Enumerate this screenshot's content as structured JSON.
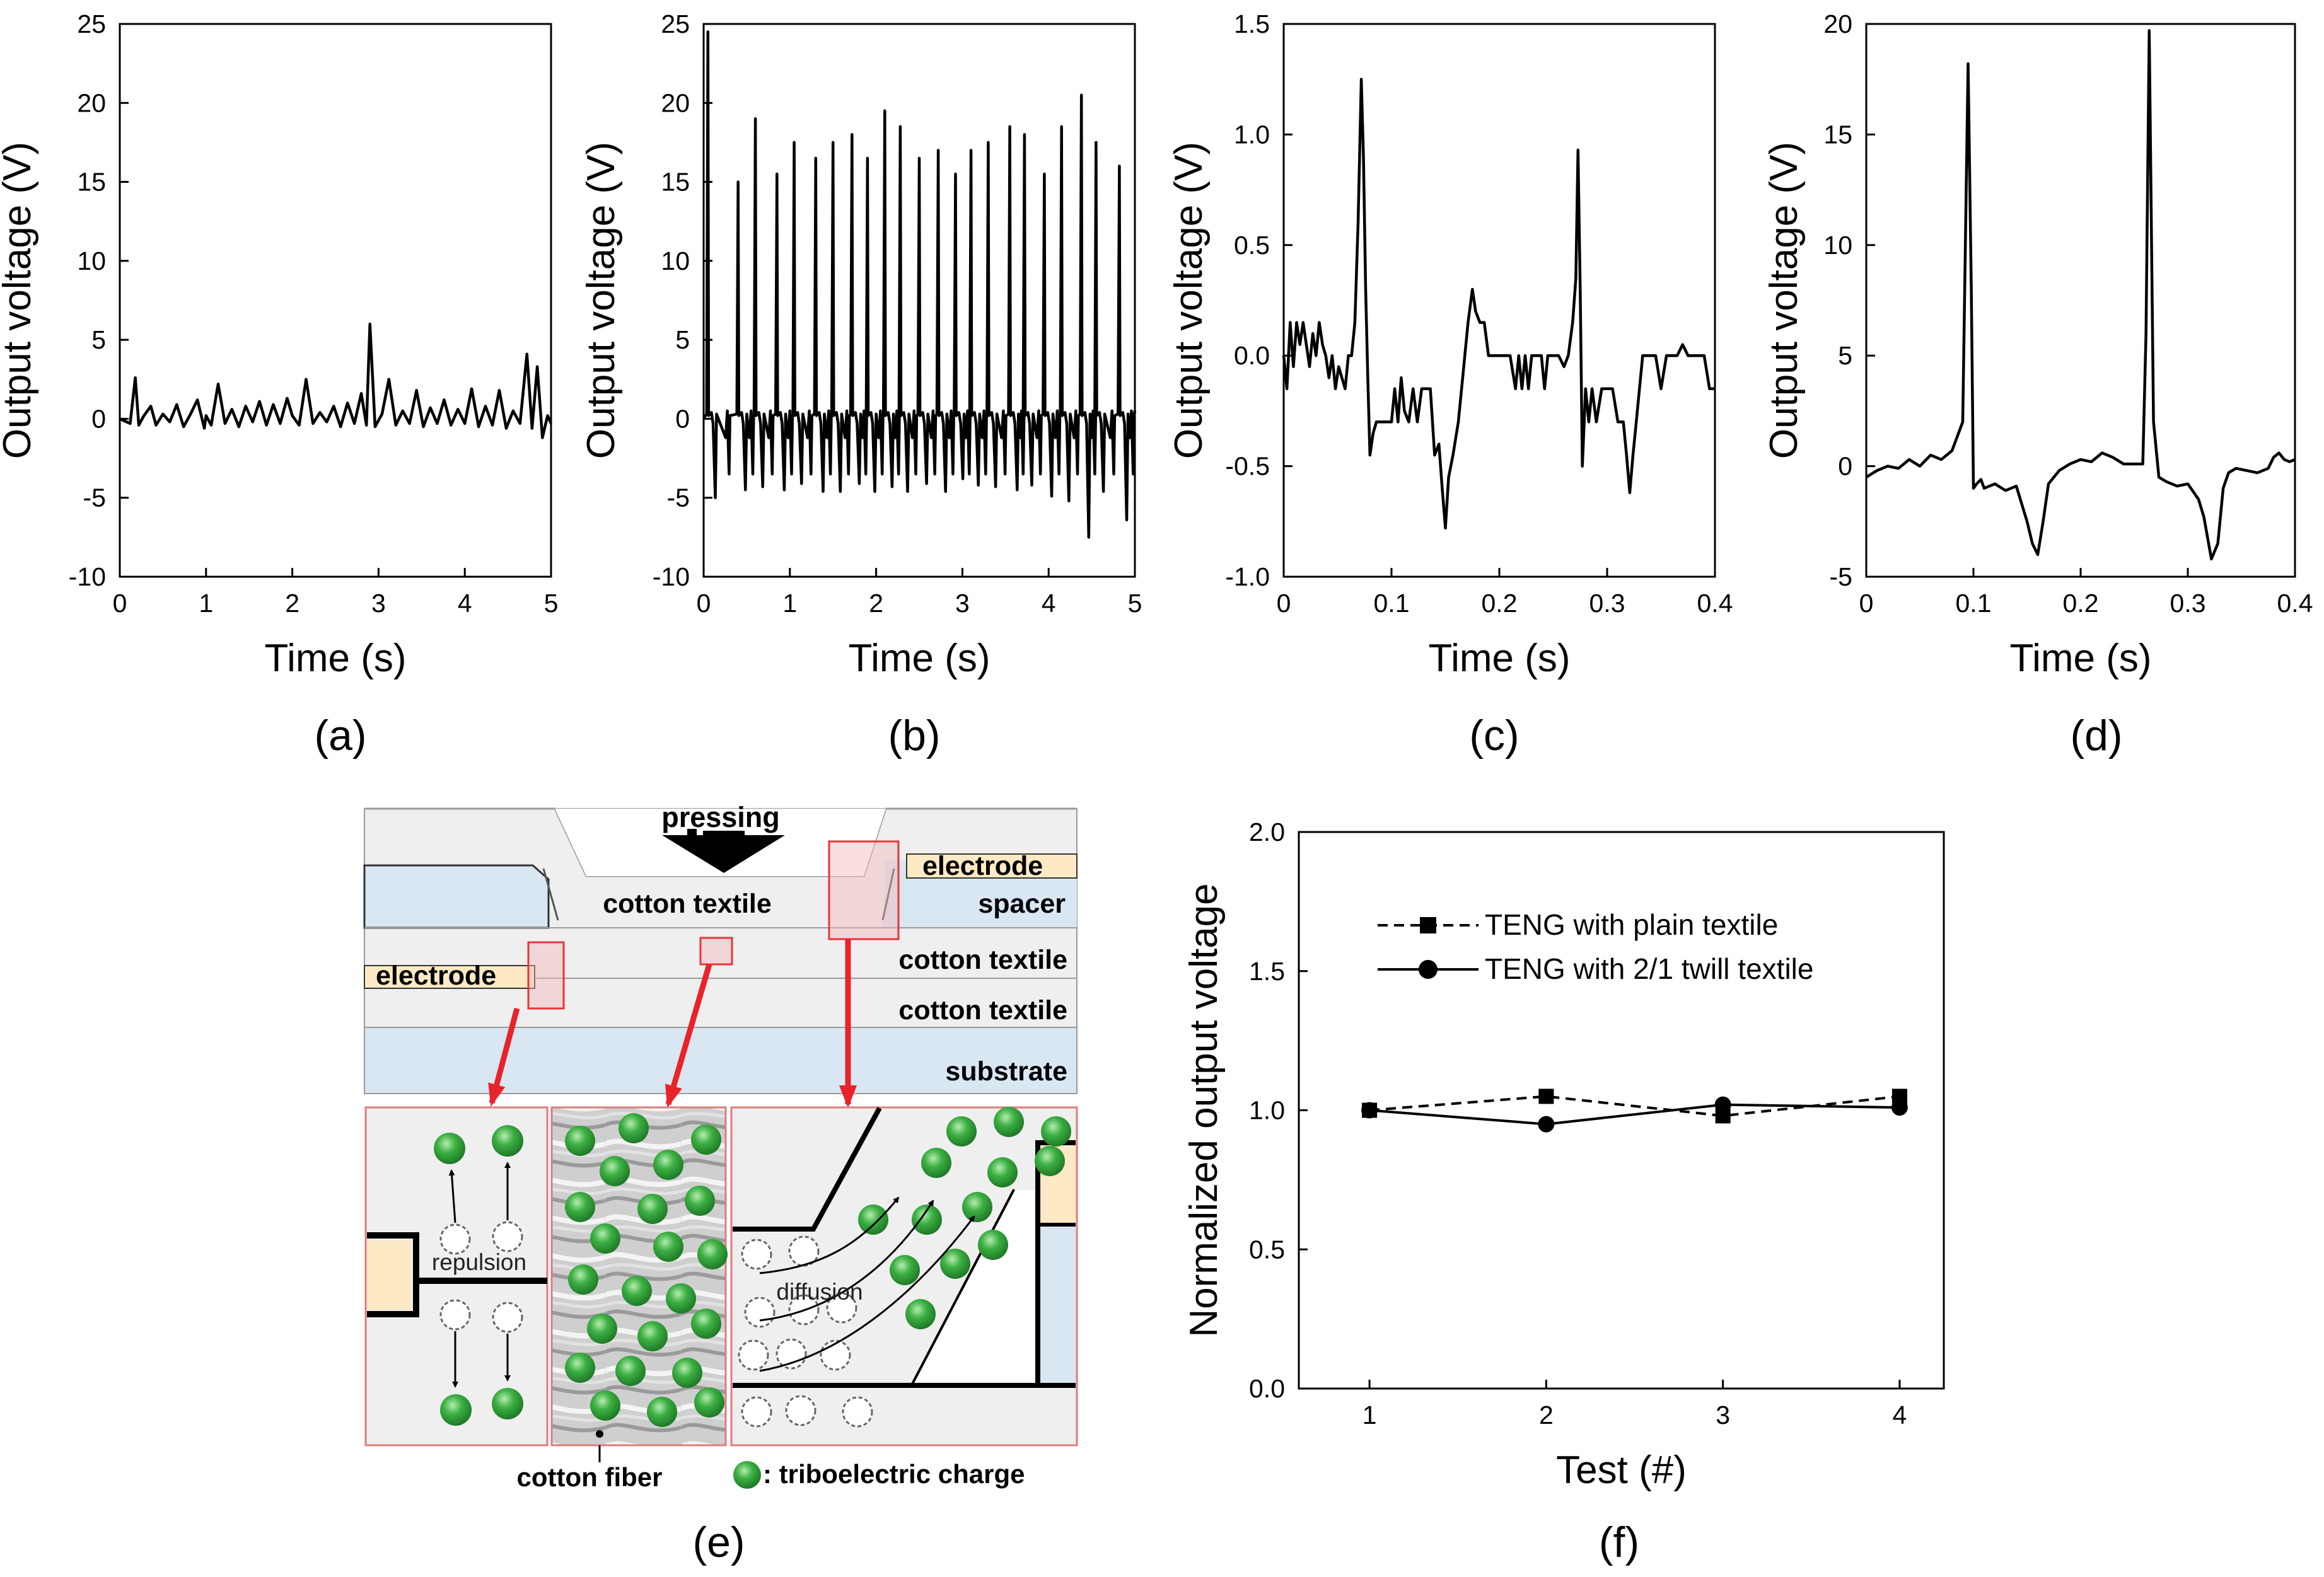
{
  "panel_labels": [
    "(a)",
    "(b)",
    "(c)",
    "(d)",
    "(e)",
    "(f)"
  ],
  "chart_data": [
    {
      "id": "a",
      "type": "line",
      "xlabel": "Time (s)",
      "ylabel": "Output voltage (V)",
      "xlim": [
        0,
        5
      ],
      "ylim": [
        -10,
        25
      ],
      "xticks": [
        0,
        1,
        2,
        3,
        4,
        5
      ],
      "yticks": [
        -10,
        -5,
        0,
        5,
        10,
        15,
        20,
        25
      ],
      "x": [
        0,
        0.12,
        0.18,
        0.22,
        0.28,
        0.36,
        0.42,
        0.5,
        0.58,
        0.66,
        0.74,
        0.82,
        0.9,
        0.98,
        1.0,
        1.06,
        1.14,
        1.22,
        1.3,
        1.38,
        1.46,
        1.54,
        1.62,
        1.7,
        1.78,
        1.86,
        1.94,
        2.0,
        2.08,
        2.16,
        2.24,
        2.32,
        2.4,
        2.48,
        2.56,
        2.64,
        2.72,
        2.8,
        2.86,
        2.9,
        2.96,
        3.04,
        3.12,
        3.2,
        3.28,
        3.36,
        3.44,
        3.52,
        3.6,
        3.68,
        3.76,
        3.84,
        3.92,
        4.0,
        4.08,
        4.16,
        4.24,
        4.32,
        4.4,
        4.48,
        4.56,
        4.64,
        4.72,
        4.78,
        4.84,
        4.9,
        4.96,
        5.0
      ],
      "y": [
        0,
        -0.3,
        2.6,
        -0.4,
        0.2,
        0.8,
        -0.4,
        0.3,
        -0.2,
        0.9,
        -0.5,
        0.3,
        1.2,
        -0.6,
        0.2,
        -0.4,
        2.2,
        -0.3,
        0.6,
        -0.5,
        0.8,
        -0.2,
        1.1,
        -0.4,
        0.9,
        -0.3,
        1.3,
        0.2,
        -0.4,
        2.5,
        -0.3,
        0.4,
        -0.2,
        0.8,
        -0.5,
        1.0,
        -0.3,
        1.6,
        -0.4,
        6.0,
        -0.5,
        0.3,
        2.5,
        -0.4,
        0.5,
        -0.3,
        1.8,
        -0.5,
        0.7,
        -0.3,
        1.2,
        -0.4,
        0.6,
        -0.3,
        1.9,
        -0.5,
        0.8,
        -0.4,
        1.8,
        -0.6,
        0.5,
        -0.3,
        4.1,
        -0.6,
        3.3,
        -1.2,
        0.2,
        -0.3
      ]
    },
    {
      "id": "b",
      "type": "line",
      "xlabel": "Time (s)",
      "ylabel": "Output voltage (V)",
      "xlim": [
        0,
        5
      ],
      "ylim": [
        -10,
        25
      ],
      "xticks": [
        0,
        1,
        2,
        3,
        4,
        5
      ],
      "yticks": [
        -10,
        -5,
        0,
        5,
        10,
        15,
        20,
        25
      ],
      "peaks_x": [
        0.05,
        0.4,
        0.6,
        0.85,
        1.05,
        1.3,
        1.5,
        1.72,
        1.9,
        2.1,
        2.28,
        2.5,
        2.72,
        2.92,
        3.1,
        3.3,
        3.55,
        3.72,
        3.95,
        4.15,
        4.38,
        4.55,
        4.82
      ],
      "peaks_y": [
        24.5,
        15,
        19,
        15.5,
        17.5,
        16.5,
        17.5,
        18,
        16.5,
        19.5,
        18.5,
        16.5,
        17,
        15.5,
        17,
        17.5,
        18.5,
        18,
        15.5,
        18.5,
        20.5,
        17.5,
        16
      ],
      "troughs_y": [
        -5,
        -4.5,
        -4.3,
        -4.5,
        -4.1,
        -4.6,
        -4.6,
        -4.1,
        -4.6,
        -4.3,
        -4.6,
        -4.1,
        -4.6,
        -3.8,
        -4.2,
        -4.3,
        -4.5,
        -4.2,
        -4.9,
        -5.2,
        -7.5,
        -4.6,
        -6.4
      ]
    },
    {
      "id": "c",
      "type": "line",
      "xlabel": "Time (s)",
      "ylabel": "Output voltage (V)",
      "xlim": [
        0,
        0.4
      ],
      "ylim": [
        -1.0,
        1.5
      ],
      "xticks": [
        0,
        0.1,
        0.2,
        0.3,
        0.4
      ],
      "xticklabels": [
        "0",
        "0.1",
        "0.2",
        "0.3",
        "0.4"
      ],
      "yticks": [
        -1.0,
        -0.5,
        0.0,
        0.5,
        1.0,
        1.5
      ],
      "yticklabels": [
        "-1.0",
        "-0.5",
        "0.0",
        "0.5",
        "1.0",
        "1.5"
      ],
      "x": [
        0,
        0.003,
        0.006,
        0.009,
        0.012,
        0.015,
        0.018,
        0.021,
        0.024,
        0.027,
        0.03,
        0.033,
        0.036,
        0.039,
        0.042,
        0.045,
        0.048,
        0.051,
        0.054,
        0.057,
        0.06,
        0.063,
        0.066,
        0.069,
        0.072,
        0.074,
        0.076,
        0.078,
        0.08,
        0.083,
        0.086,
        0.09,
        0.095,
        0.1,
        0.103,
        0.106,
        0.109,
        0.112,
        0.116,
        0.12,
        0.124,
        0.128,
        0.132,
        0.136,
        0.14,
        0.144,
        0.147,
        0.15,
        0.153,
        0.157,
        0.162,
        0.167,
        0.171,
        0.175,
        0.178,
        0.182,
        0.186,
        0.19,
        0.195,
        0.2,
        0.205,
        0.21,
        0.215,
        0.218,
        0.221,
        0.224,
        0.227,
        0.23,
        0.233,
        0.236,
        0.239,
        0.242,
        0.245,
        0.25,
        0.255,
        0.26,
        0.264,
        0.268,
        0.271,
        0.273,
        0.275,
        0.277,
        0.28,
        0.283,
        0.286,
        0.29,
        0.295,
        0.3,
        0.305,
        0.31,
        0.315,
        0.318,
        0.321,
        0.324,
        0.327,
        0.33,
        0.333,
        0.336,
        0.34,
        0.345,
        0.35,
        0.355,
        0.36,
        0.365,
        0.37,
        0.375,
        0.38,
        0.385,
        0.39,
        0.395,
        0.4
      ],
      "y": [
        0,
        -0.15,
        0.15,
        -0.05,
        0.15,
        0.05,
        0.15,
        0.05,
        -0.05,
        0.1,
        0.0,
        0.15,
        0.05,
        0.0,
        -0.1,
        0.0,
        -0.15,
        -0.05,
        -0.1,
        -0.15,
        0.0,
        0.0,
        0.15,
        0.6,
        1.25,
        0.9,
        0.3,
        -0.1,
        -0.45,
        -0.35,
        -0.3,
        -0.3,
        -0.3,
        -0.3,
        -0.15,
        -0.3,
        -0.1,
        -0.25,
        -0.3,
        -0.15,
        -0.3,
        -0.15,
        -0.15,
        -0.15,
        -0.45,
        -0.4,
        -0.6,
        -0.78,
        -0.55,
        -0.45,
        -0.3,
        -0.05,
        0.15,
        0.3,
        0.2,
        0.15,
        0.15,
        0.0,
        0.0,
        0.0,
        0.0,
        0.0,
        -0.15,
        0.0,
        -0.15,
        0.0,
        -0.15,
        0.0,
        0.0,
        0.0,
        0.0,
        -0.15,
        0.0,
        0.0,
        0.0,
        -0.05,
        0.0,
        0.15,
        0.35,
        0.93,
        0.3,
        -0.5,
        -0.15,
        -0.3,
        -0.15,
        -0.3,
        -0.15,
        -0.15,
        -0.15,
        -0.3,
        -0.3,
        -0.45,
        -0.62,
        -0.45,
        -0.3,
        -0.15,
        0.0,
        0.0,
        0.0,
        0.0,
        -0.15,
        0.0,
        0.0,
        0.0,
        0.05,
        0.0,
        0.0,
        0.0,
        0.0,
        -0.15,
        -0.15
      ]
    },
    {
      "id": "d",
      "type": "line",
      "xlabel": "Time (s)",
      "ylabel": "Output voltage (V)",
      "xlim": [
        0,
        0.4
      ],
      "ylim": [
        -5,
        20
      ],
      "xticks": [
        0,
        0.1,
        0.2,
        0.3,
        0.4
      ],
      "xticklabels": [
        "0",
        "0.1",
        "0.2",
        "0.3",
        "0.4"
      ],
      "yticks": [
        -5,
        0,
        5,
        10,
        15,
        20
      ],
      "yticklabels": [
        "-5",
        "0",
        "5",
        "10",
        "15",
        "20"
      ],
      "x": [
        0,
        0.01,
        0.02,
        0.03,
        0.04,
        0.05,
        0.06,
        0.07,
        0.08,
        0.09,
        0.095,
        0.098,
        0.1,
        0.103,
        0.107,
        0.11,
        0.12,
        0.13,
        0.14,
        0.15,
        0.155,
        0.16,
        0.165,
        0.17,
        0.18,
        0.19,
        0.2,
        0.21,
        0.22,
        0.23,
        0.24,
        0.25,
        0.258,
        0.261,
        0.264,
        0.268,
        0.273,
        0.28,
        0.29,
        0.3,
        0.31,
        0.315,
        0.322,
        0.328,
        0.333,
        0.338,
        0.345,
        0.355,
        0.365,
        0.375,
        0.38,
        0.385,
        0.39,
        0.395,
        0.4
      ],
      "y": [
        -0.5,
        -0.2,
        0,
        -0.1,
        0.3,
        0,
        0.5,
        0.3,
        0.7,
        2.0,
        18.2,
        8.0,
        -1.0,
        -0.8,
        -0.6,
        -1.0,
        -0.8,
        -1.1,
        -0.9,
        -2.5,
        -3.5,
        -4.0,
        -2.5,
        -0.8,
        -0.2,
        0.1,
        0.3,
        0.2,
        0.6,
        0.4,
        0.1,
        0.1,
        0.1,
        6.0,
        19.7,
        2.0,
        -0.5,
        -0.7,
        -0.9,
        -0.8,
        -1.5,
        -2.3,
        -4.2,
        -3.5,
        -1.0,
        -0.3,
        -0.1,
        -0.2,
        -0.3,
        -0.1,
        0.4,
        0.6,
        0.3,
        0.2,
        0.3
      ]
    },
    {
      "id": "f",
      "type": "line",
      "xlabel": "Test (#)",
      "ylabel": "Normalized output voltage",
      "xlim": [
        0.6,
        4.25
      ],
      "ylim": [
        0.0,
        2.0
      ],
      "categories": [
        1,
        2,
        3,
        4
      ],
      "yticks": [
        0.0,
        0.5,
        1.0,
        1.5,
        2.0
      ],
      "yticklabels": [
        "0.0",
        "0.5",
        "1.0",
        "1.5",
        "2.0"
      ],
      "series": [
        {
          "name": "TENG with plain textile",
          "marker": "square",
          "line": "dashed",
          "values": [
            1.0,
            1.05,
            0.98,
            1.05
          ]
        },
        {
          "name": "TENG with 2/1 twill textile",
          "marker": "circle",
          "line": "solid",
          "values": [
            1.0,
            0.95,
            1.02,
            1.01
          ]
        }
      ],
      "legend_position": "top-left"
    }
  ],
  "diagram": {
    "top_labels": {
      "pressing": "pressing",
      "electrode_right": "electrode",
      "spacer": "spacer",
      "cotton_textile_top": "cotton textile",
      "electrode_left": "electrode",
      "cotton_textile_mid": "cotton textile",
      "cotton_textile_low": "cotton textile",
      "substrate": "substrate"
    },
    "detail_labels": {
      "repulsion": "repulsion",
      "diffusion": "diffusion",
      "cotton_fiber": "cotton fiber",
      "triboelectric_charge": ": triboelectric charge"
    },
    "colors": {
      "layer_gray": "#efefef",
      "spacer_blue": "#d9e7f3",
      "electrode_tan": "#fde9c4",
      "charge_green": "#3cb043",
      "highlight_red": "#e8343a"
    }
  }
}
